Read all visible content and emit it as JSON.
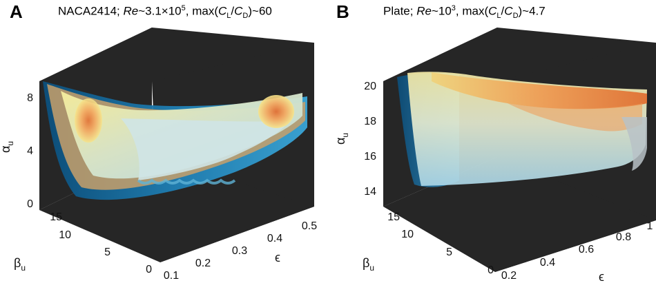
{
  "chart_data": [
    {
      "type": "surface3d",
      "panel_letter": "A",
      "title": {
        "prefix": "NACA2414; ",
        "re_symbol": "Re",
        "re_value": "~3.1×10",
        "re_exp": "5",
        "mid": ", max(",
        "cl": "C",
        "cl_sub": "L",
        "slash": "/",
        "cd": "C",
        "cd_sub": "D",
        "tail": ")~60"
      },
      "axes": {
        "z": {
          "label": "α",
          "label_sub": "u",
          "ticks": [
            "0",
            "4",
            "8"
          ],
          "range": [
            0,
            10
          ]
        },
        "y": {
          "label": "β",
          "label_sub": "u",
          "ticks": [
            "0",
            "5",
            "10",
            "15"
          ],
          "range": [
            0,
            18
          ]
        },
        "x": {
          "label": "ϵ",
          "ticks": [
            "0.1",
            "0.2",
            "0.3",
            "0.4",
            "0.5"
          ],
          "range": [
            0.1,
            0.5
          ]
        }
      },
      "surface_colors": [
        "#0b4f7c",
        "#3aa6d8",
        "#b5dde6",
        "#f2e58a",
        "#f3a35a",
        "#e06a2c"
      ],
      "background_color": "#262626"
    },
    {
      "type": "surface3d",
      "panel_letter": "B",
      "title": {
        "prefix": "Plate; ",
        "re_symbol": "Re",
        "re_value": "~10",
        "re_exp": "3",
        "mid": ", max(",
        "cl": "C",
        "cl_sub": "L",
        "slash": "/",
        "cd": "C",
        "cd_sub": "D",
        "tail": ")~4.7"
      },
      "axes": {
        "z": {
          "label": "α",
          "label_sub": "u",
          "ticks": [
            "14",
            "16",
            "18",
            "20"
          ],
          "range": [
            13,
            20
          ]
        },
        "y": {
          "label": "β",
          "label_sub": "u",
          "ticks": [
            "0",
            "5",
            "10",
            "15"
          ],
          "range": [
            0,
            18
          ]
        },
        "x": {
          "label": "ϵ",
          "ticks": [
            "0.2",
            "0.4",
            "0.6",
            "0.8",
            "1"
          ],
          "range": [
            0.2,
            1.0
          ]
        }
      },
      "surface_colors": [
        "#0b4f7c",
        "#6fb7d6",
        "#c6e3ea",
        "#f0e09a",
        "#f09a55",
        "#e0662a"
      ],
      "background_color": "#262626"
    }
  ]
}
